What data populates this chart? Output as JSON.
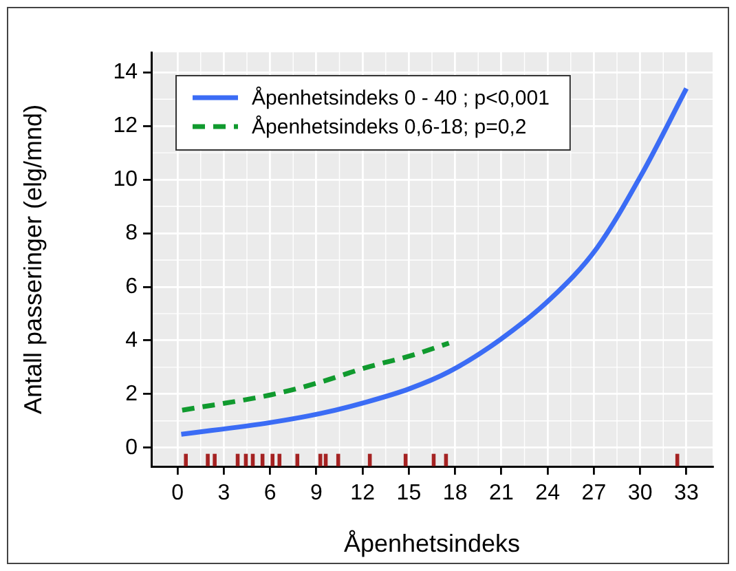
{
  "chart_data": {
    "type": "line",
    "xlabel": "Åpenhetsindeks",
    "ylabel": "Antall passeringer (elg/mnd)",
    "xlim": [
      -1.7,
      34.7
    ],
    "xticks": [
      0,
      3,
      6,
      9,
      12,
      15,
      18,
      21,
      24,
      27,
      30,
      33
    ],
    "ylim": [
      -0.7,
      14.75
    ],
    "yticks": [
      0,
      2,
      4,
      6,
      8,
      10,
      12,
      14
    ],
    "grid": true,
    "legend": "top left",
    "marker": "none",
    "series": [
      {
        "name": "Åpenhetsindeks 0 - 40 ; p<0,001",
        "color": "#3b6cf5",
        "line_style": "solid",
        "x": [
          0.24,
          6.04,
          9.3,
          12.3,
          15.0,
          17.6,
          20.9,
          24.2,
          27.2,
          30.1,
          33.0
        ],
        "values": [
          0.5,
          0.94,
          1.28,
          1.71,
          2.19,
          2.83,
          4.02,
          5.56,
          7.45,
          10.2,
          13.4
        ]
      },
      {
        "name": "Åpenhetsindeks 0,6-18; p=0,2",
        "color": "#109a2e",
        "line_style": "dashed",
        "x": [
          0.3,
          6.04,
          9.0,
          12.3,
          15.3,
          17.6
        ],
        "values": [
          1.4,
          1.97,
          2.4,
          3.0,
          3.46,
          3.9
        ]
      },
      {
        "type": "scatter",
        "marker": "square",
        "color": "#a52222",
        "x": [
          0.54,
          1.96,
          2.41,
          3.9,
          4.43,
          4.88,
          5.51,
          6.16,
          6.61,
          7.77,
          9.26,
          9.61,
          10.42,
          12.47,
          14.79,
          16.61,
          17.41,
          32.41
        ],
        "values": [
          -0.46,
          -0.46,
          -0.46,
          -0.46,
          -0.46,
          -0.46,
          -0.46,
          -0.46,
          -0.46,
          -0.46,
          -0.46,
          -0.46,
          -0.46,
          -0.46,
          -0.46,
          -0.46,
          -0.46,
          -0.46
        ]
      }
    ]
  }
}
